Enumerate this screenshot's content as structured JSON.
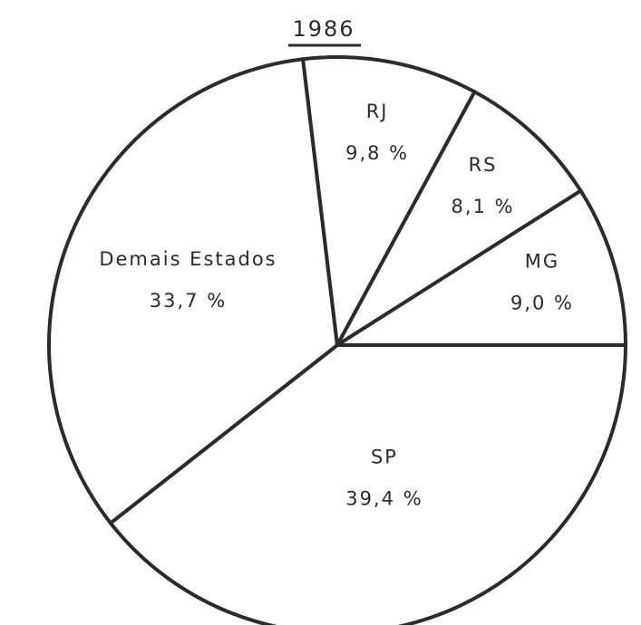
{
  "chart_data": {
    "type": "pie",
    "title": "1986",
    "categories": [
      "SP",
      "Demais Estados",
      "RJ",
      "RS",
      "MG"
    ],
    "values": [
      39.4,
      33.7,
      9.8,
      8.1,
      9.0
    ],
    "value_labels": [
      "39,4 %",
      "33,7 %",
      "9,8 %",
      "8,1 %",
      "9,0 %"
    ],
    "color": "#ffffff",
    "edge_color": "#2b2b2b"
  }
}
